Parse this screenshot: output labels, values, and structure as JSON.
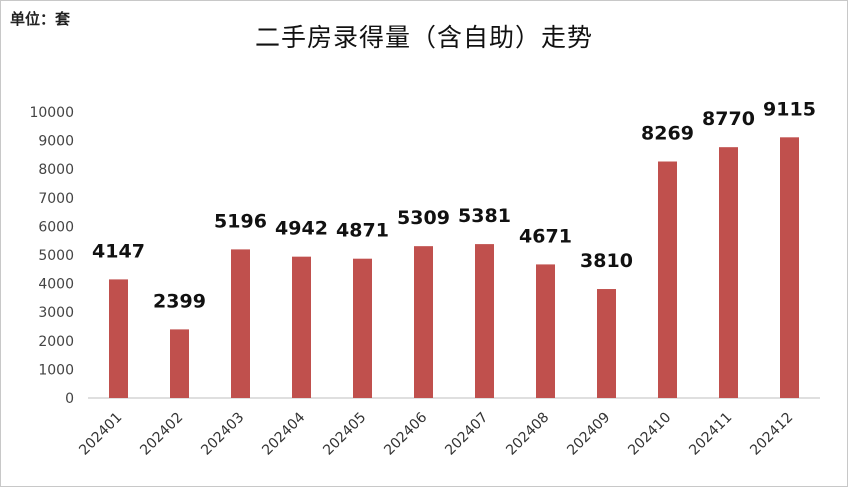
{
  "unit_label": "单位：套",
  "chart_data": {
    "type": "bar",
    "title": "二手房录得量（含自助）走势",
    "xlabel": "",
    "ylabel": "",
    "ylim": [
      0,
      10000
    ],
    "yticks": [
      0,
      1000,
      2000,
      3000,
      4000,
      5000,
      6000,
      7000,
      8000,
      9000,
      10000
    ],
    "grid": false,
    "bar_color": "#c0504d",
    "categories": [
      "202401",
      "202402",
      "202403",
      "202404",
      "202405",
      "202406",
      "202407",
      "202408",
      "202409",
      "202410",
      "202411",
      "202412"
    ],
    "values": [
      4147,
      2399,
      5196,
      4942,
      4871,
      5309,
      5381,
      4671,
      3810,
      8269,
      8770,
      9115
    ]
  }
}
